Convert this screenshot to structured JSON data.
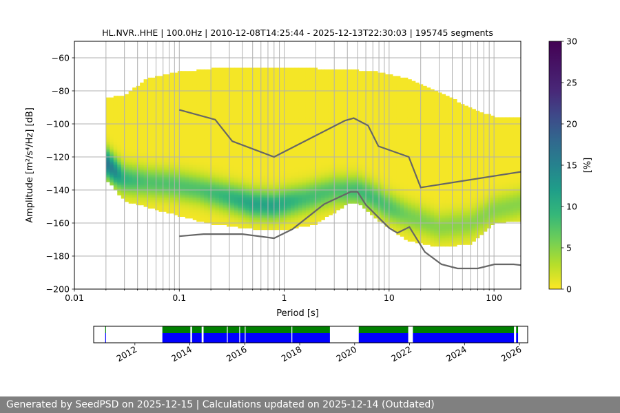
{
  "chart_data": [
    {
      "type": "heatmap",
      "title": "HL.NVR..HHE | 100.0Hz | 2010-12-08T14:25:44 - 2025-12-13T22:30:03 | 195745 segments",
      "xlabel": "Period [s]",
      "ylabel": "Amplitude [m²/s⁴/Hz] [dB]",
      "x_scale": "log",
      "xlim": [
        0.01,
        180
      ],
      "ylim": [
        -200,
        -50
      ],
      "grid": true,
      "x_ticks": [
        {
          "value": 0.01,
          "label": "0.01"
        },
        {
          "value": 0.1,
          "label": "0.1"
        },
        {
          "value": 1,
          "label": "1"
        },
        {
          "value": 10,
          "label": "10"
        },
        {
          "value": 100,
          "label": "100"
        }
      ],
      "y_ticks": [
        {
          "value": -60,
          "label": "−60"
        },
        {
          "value": -80,
          "label": "−80"
        },
        {
          "value": -100,
          "label": "−100"
        },
        {
          "value": -120,
          "label": "−120"
        },
        {
          "value": -140,
          "label": "−140"
        },
        {
          "value": -160,
          "label": "−160"
        },
        {
          "value": -180,
          "label": "−180"
        },
        {
          "value": -200,
          "label": "−200"
        }
      ],
      "colorbar": {
        "label": "[%]",
        "range": [
          0,
          30
        ],
        "ticks": [
          {
            "value": 0,
            "label": "0"
          },
          {
            "value": 5,
            "label": "5"
          },
          {
            "value": 10,
            "label": "10"
          },
          {
            "value": 15,
            "label": "15"
          },
          {
            "value": 20,
            "label": "20"
          },
          {
            "value": 25,
            "label": "25"
          },
          {
            "value": 30,
            "label": "30"
          }
        ],
        "colormap": "viridis"
      },
      "probability_envelope": {
        "period": [
          0.02,
          0.03,
          0.05,
          0.1,
          0.2,
          0.5,
          1,
          2,
          4,
          5,
          8,
          15,
          30,
          60,
          100,
          180
        ],
        "upper_db": [
          -84,
          -82,
          -72,
          -68,
          -66,
          -66,
          -65,
          -66,
          -67,
          -67,
          -68,
          -72,
          -80,
          -90,
          -95,
          -96
        ],
        "lower_db": [
          -133,
          -146,
          -150,
          -155,
          -160,
          -163,
          -164,
          -160,
          -148,
          -147,
          -158,
          -170,
          -174,
          -172,
          -160,
          -158
        ]
      },
      "mode": {
        "period": [
          0.02,
          0.025,
          0.03,
          0.05,
          0.08,
          0.15,
          0.3,
          0.5,
          0.8,
          1.5,
          3,
          5,
          7,
          10,
          15,
          30,
          60,
          100,
          180
        ],
        "db": [
          -123,
          -129,
          -133,
          -135,
          -136,
          -139,
          -144,
          -148,
          -149,
          -145,
          -140,
          -140,
          -144,
          -150,
          -155,
          -162,
          -160,
          -152,
          -148
        ],
        "peak_percent": [
          18,
          15,
          10,
          8,
          8,
          8,
          10,
          12,
          12,
          9,
          8,
          9,
          9,
          8,
          6,
          5,
          5,
          5,
          5
        ]
      },
      "series": [
        {
          "name": "high noise model",
          "x": [
            0.1,
            0.22,
            0.32,
            0.8,
            3.8,
            4.6,
            6.3,
            7.9,
            15.4,
            20,
            180
          ],
          "y": [
            -91.5,
            -97.4,
            -110.5,
            -120,
            -98,
            -96.5,
            -101,
            -113.5,
            -120,
            -138.5,
            -129
          ]
        },
        {
          "name": "low noise model",
          "x": [
            0.1,
            0.17,
            0.4,
            0.8,
            1.2,
            2.4,
            4.3,
            5,
            6,
            10,
            12,
            15.6,
            21.9,
            31.6,
            45,
            70,
            101,
            154,
            180
          ],
          "y": [
            -168,
            -166.7,
            -166.7,
            -169.2,
            -163.7,
            -148.6,
            -141.1,
            -141.1,
            -149,
            -163,
            -166,
            -162.4,
            -177.5,
            -185,
            -187.5,
            -187.5,
            -185,
            -185,
            -185.5
          ]
        }
      ]
    },
    {
      "type": "timeline",
      "x_ticks": [
        "2012",
        "2014",
        "2016",
        "2018",
        "2020",
        "2022",
        "2024",
        "2026"
      ],
      "xlim": [
        2010.5,
        2026.3
      ],
      "data_intervals": [
        [
          2010.92,
          2010.95
        ],
        [
          2013.0,
          2014.02
        ],
        [
          2014.08,
          2014.43
        ],
        [
          2014.5,
          2019.1
        ],
        [
          2020.15,
          2021.95
        ],
        [
          2022.12,
          2025.8
        ],
        [
          2025.88,
          2025.95
        ]
      ],
      "gaps_in_quality_row": [
        2015.35,
        2015.8,
        2016.0,
        2017.7
      ],
      "colors": {
        "availability": "#0000ff",
        "quality": "#008000"
      }
    }
  ],
  "footer": {
    "text": "Generated by SeedPSD on 2025-12-15 | Calculations updated on 2025-12-14 (Outdated)"
  },
  "colors": {
    "model_line": "#666666",
    "grid": "#b0b0b0",
    "footer_bg": "#808080"
  }
}
